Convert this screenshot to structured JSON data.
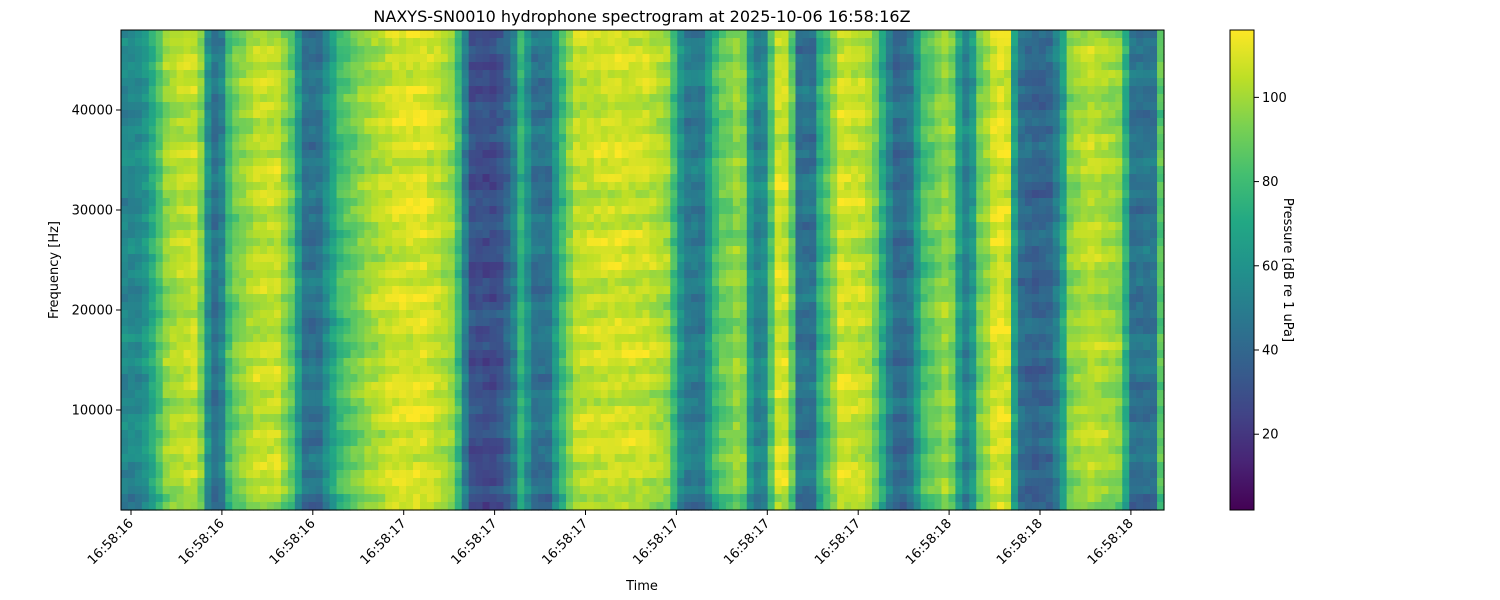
{
  "chart_data": {
    "type": "heatmap",
    "title": "NAXYS-SN0010 hydrophone spectrogram at 2025-10-06 16:58:16Z",
    "xlabel": "Time",
    "ylabel": "Frequency [Hz]",
    "colorbar_label": "Pressure [dB re 1 uPa]",
    "colormap": "viridis",
    "x_ticks": [
      "16:58:16",
      "16:58:16",
      "16:58:16",
      "16:58:17",
      "16:58:17",
      "16:58:17",
      "16:58:17",
      "16:58:17",
      "16:58:17",
      "16:58:18",
      "16:58:18",
      "16:58:18"
    ],
    "y_ticks": [
      10000,
      20000,
      30000,
      40000
    ],
    "ylim": [
      0,
      48000
    ],
    "colorbar_ticks": [
      20,
      40,
      60,
      80,
      100
    ],
    "clim": [
      2,
      116
    ],
    "grid": false,
    "time_profile": [
      [
        0.0,
        55
      ],
      [
        0.02,
        55
      ],
      [
        0.035,
        80
      ],
      [
        0.045,
        100
      ],
      [
        0.07,
        106
      ],
      [
        0.08,
        88
      ],
      [
        0.085,
        45
      ],
      [
        0.095,
        45
      ],
      [
        0.105,
        88
      ],
      [
        0.13,
        105
      ],
      [
        0.15,
        106
      ],
      [
        0.165,
        85
      ],
      [
        0.175,
        45
      ],
      [
        0.19,
        45
      ],
      [
        0.21,
        80
      ],
      [
        0.235,
        98
      ],
      [
        0.26,
        108
      ],
      [
        0.29,
        110
      ],
      [
        0.305,
        105
      ],
      [
        0.32,
        96
      ],
      [
        0.325,
        72
      ],
      [
        0.335,
        30
      ],
      [
        0.36,
        28
      ],
      [
        0.375,
        45
      ],
      [
        0.385,
        82
      ],
      [
        0.39,
        60
      ],
      [
        0.395,
        45
      ],
      [
        0.41,
        45
      ],
      [
        0.42,
        72
      ],
      [
        0.435,
        104
      ],
      [
        0.47,
        108
      ],
      [
        0.505,
        106
      ],
      [
        0.525,
        98
      ],
      [
        0.53,
        80
      ],
      [
        0.54,
        50
      ],
      [
        0.56,
        48
      ],
      [
        0.565,
        72
      ],
      [
        0.575,
        88
      ],
      [
        0.585,
        92
      ],
      [
        0.595,
        102
      ],
      [
        0.605,
        55
      ],
      [
        0.615,
        48
      ],
      [
        0.625,
        92
      ],
      [
        0.63,
        108
      ],
      [
        0.64,
        106
      ],
      [
        0.645,
        78
      ],
      [
        0.65,
        45
      ],
      [
        0.665,
        45
      ],
      [
        0.67,
        72
      ],
      [
        0.69,
        108
      ],
      [
        0.715,
        104
      ],
      [
        0.725,
        88
      ],
      [
        0.73,
        72
      ],
      [
        0.74,
        42
      ],
      [
        0.755,
        42
      ],
      [
        0.77,
        82
      ],
      [
        0.79,
        98
      ],
      [
        0.8,
        90
      ],
      [
        0.805,
        55
      ],
      [
        0.815,
        50
      ],
      [
        0.82,
        88
      ],
      [
        0.83,
        98
      ],
      [
        0.84,
        112
      ],
      [
        0.85,
        108
      ],
      [
        0.855,
        75
      ],
      [
        0.86,
        45
      ],
      [
        0.875,
        38
      ],
      [
        0.89,
        40
      ],
      [
        0.9,
        55
      ],
      [
        0.91,
        95
      ],
      [
        0.93,
        104
      ],
      [
        0.96,
        95
      ],
      [
        0.965,
        62
      ],
      [
        0.97,
        45
      ],
      [
        0.99,
        45
      ],
      [
        0.995,
        78
      ],
      [
        1.0,
        100
      ]
    ]
  }
}
